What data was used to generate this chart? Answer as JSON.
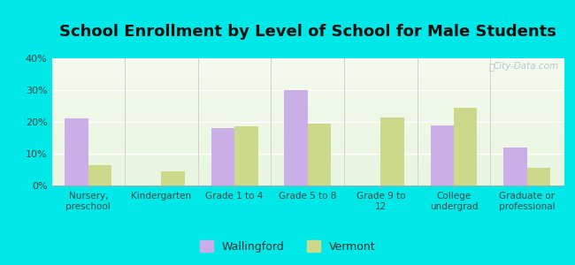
{
  "title": "School Enrollment by Level of School for Male Students",
  "categories": [
    "Nursery,\npreschool",
    "Kindergarten",
    "Grade 1 to 4",
    "Grade 5 to 8",
    "Grade 9 to\n12",
    "College\nundergrad",
    "Graduate or\nprofessional"
  ],
  "wallingford": [
    21,
    0,
    18,
    30,
    0,
    19,
    12
  ],
  "vermont": [
    6.5,
    4.5,
    18.5,
    19.5,
    21.5,
    24.5,
    5.5
  ],
  "wallingford_color": "#c9aee8",
  "vermont_color": "#cdd98a",
  "background_color": "#00e8e8",
  "ylim": [
    0,
    40
  ],
  "yticks": [
    0,
    10,
    20,
    30,
    40
  ],
  "ytick_labels": [
    "0%",
    "10%",
    "20%",
    "30%",
    "40%"
  ],
  "title_fontsize": 13,
  "legend_labels": [
    "Wallingford",
    "Vermont"
  ],
  "watermark": "City-Data.com",
  "bar_width": 0.32
}
